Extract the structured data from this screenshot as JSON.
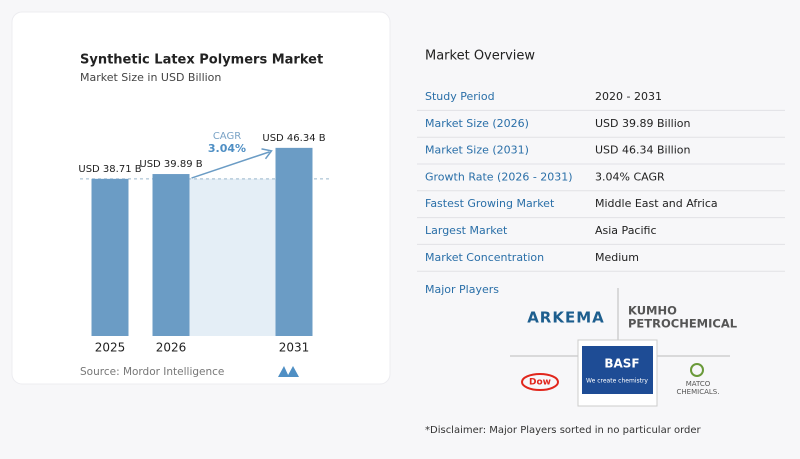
{
  "chart_data": {
    "type": "bar",
    "title": "Synthetic Latex Polymers Market",
    "subtitle": "Market Size in USD Billion",
    "categories": [
      "2025",
      "2026",
      "2031"
    ],
    "values": [
      38.71,
      39.89,
      46.34
    ],
    "value_labels": [
      "USD 38.71 B",
      "USD 39.89 B",
      "USD 46.34 B"
    ],
    "color": "#6b9cc5",
    "annotation": {
      "label": "CAGR",
      "value": "3.04%"
    },
    "source": "Source:  Mordor Intelligence"
  },
  "overview": {
    "title": "Market Overview",
    "rows": [
      [
        "Study Period",
        "2020 - 2031"
      ],
      [
        "Market Size (2026)",
        "USD 39.89 Billion"
      ],
      [
        "Market Size (2031)",
        "USD 46.34 Billion"
      ],
      [
        "Growth Rate (2026 - 2031)",
        "3.04% CAGR"
      ],
      [
        "Fastest Growing Market",
        "Middle East and Africa"
      ],
      [
        "Largest Market",
        "Asia Pacific"
      ],
      [
        "Market Concentration",
        "Medium"
      ]
    ],
    "players_title": "Major Players",
    "players": {
      "arkema": "ARKEMA",
      "kumho": [
        "KUMHO",
        "PETROCHEMICAL"
      ],
      "basf": "BASF",
      "basf_tagline": "We create chemistry",
      "dow": "Dow",
      "matco": [
        "MATCO",
        "CHEMICALS."
      ]
    },
    "disclaimer": "*Disclaimer: Major Players sorted in no particular order"
  }
}
